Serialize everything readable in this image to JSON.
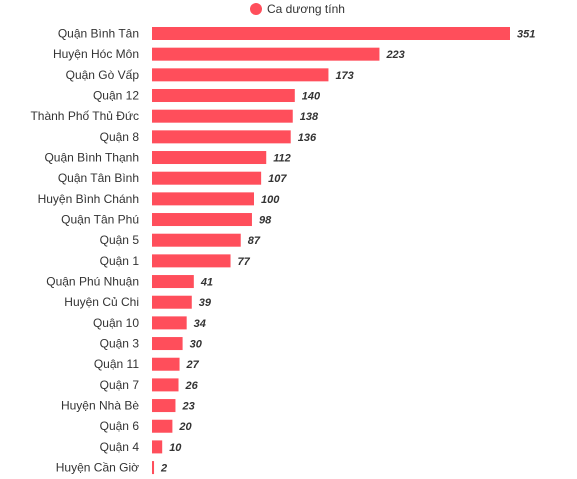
{
  "chart_data": {
    "type": "bar",
    "orientation": "horizontal",
    "legend_position": "top",
    "grid": false,
    "xlim": [
      0,
      351
    ],
    "categories": [
      "Quận Bình Tân",
      "Huyện Hóc Môn",
      "Quận Gò Vấp",
      "Quận 12",
      "Thành Phố Thủ Đức",
      "Quận 8",
      "Quận Bình Thạnh",
      "Quận Tân Bình",
      "Huyện Bình Chánh",
      "Quận Tân Phú",
      "Quận 5",
      "Quận 1",
      "Quận Phú Nhuận",
      "Huyện Củ Chi",
      "Quận 10",
      "Quận 3",
      "Quận 11",
      "Quận 7",
      "Huyện Nhà Bè",
      "Quận 6",
      "Quận 4",
      "Huyện Cần Giờ"
    ],
    "series": [
      {
        "name": "Ca dương tính",
        "color": "#ff4e5b",
        "values": [
          351,
          223,
          173,
          140,
          138,
          136,
          112,
          107,
          100,
          98,
          87,
          77,
          41,
          39,
          34,
          30,
          27,
          26,
          23,
          20,
          10,
          2
        ]
      }
    ]
  }
}
